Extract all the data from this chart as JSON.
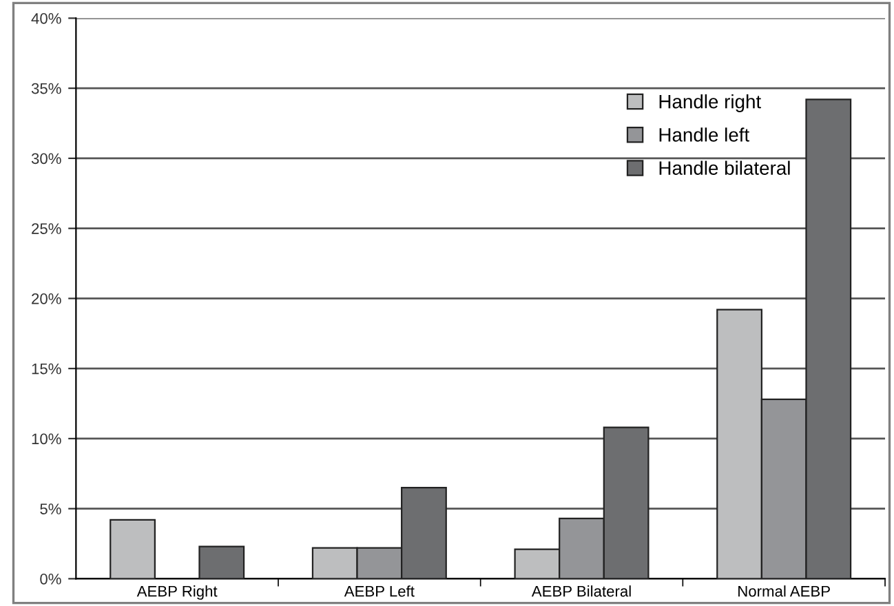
{
  "chart_data": {
    "type": "bar",
    "categories": [
      "AEBP Right",
      "AEBP Left",
      "AEBP Bilateral",
      "Normal AEBP"
    ],
    "series": [
      {
        "name": "Handle right",
        "color": "#bdbebf",
        "values": [
          4.2,
          2.2,
          2.1,
          19.2
        ]
      },
      {
        "name": "Handle left",
        "color": "#949598",
        "values": [
          0,
          2.2,
          4.3,
          12.8
        ]
      },
      {
        "name": "Handle bilateral",
        "color": "#6d6e70",
        "values": [
          2.3,
          6.5,
          10.8,
          34.2
        ]
      }
    ],
    "ylim": [
      0,
      40
    ],
    "yticks": [
      {
        "value": 0,
        "label": "0%"
      },
      {
        "value": 5,
        "label": "5%"
      },
      {
        "value": 10,
        "label": "10%"
      },
      {
        "value": 15,
        "label": "15%"
      },
      {
        "value": 20,
        "label": "20%"
      },
      {
        "value": 25,
        "label": "25%"
      },
      {
        "value": 30,
        "label": "30%"
      },
      {
        "value": 35,
        "label": "35%"
      },
      {
        "value": 40,
        "label": "40%"
      }
    ],
    "grid": "y",
    "legend": "top right"
  }
}
